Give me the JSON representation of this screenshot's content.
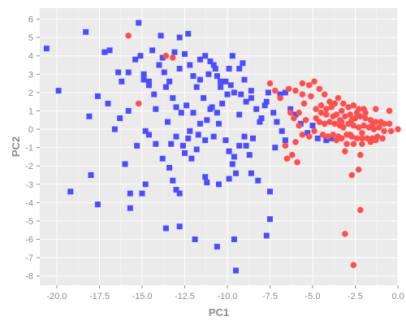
{
  "chart_data": {
    "type": "scatter",
    "xlabel": "PC1",
    "ylabel": "PC2",
    "xlim": [
      -21,
      0
    ],
    "ylim": [
      -8.5,
      6.6
    ],
    "grid": true,
    "background": "#ebebeb",
    "gridline_color": "#ffffff",
    "x_ticks": [
      -20.0,
      -17.5,
      -15.0,
      -12.5,
      -10.0,
      -7.5,
      -5.0,
      -2.5,
      0.0
    ],
    "x_tick_labels": [
      "-20.0",
      "-17.5",
      "-15.0",
      "-12.5",
      "-10.0",
      "-7.5",
      "-5.0",
      "-2.5",
      "0.0"
    ],
    "y_ticks": [
      6,
      5,
      4,
      3,
      2,
      1,
      0,
      -1,
      -2,
      -3,
      -4,
      -5,
      -6,
      -7,
      -8
    ],
    "y_tick_labels": [
      "6",
      "5",
      "4",
      "3",
      "2",
      "1",
      "0",
      "-1",
      "-2",
      "-3",
      "-4",
      "-5",
      "-6",
      "-7",
      "-8"
    ],
    "series": [
      {
        "color": "#4d4dff",
        "marker": "square",
        "points": [
          [
            -20.6,
            4.4
          ],
          [
            -19.9,
            2.1
          ],
          [
            -18.3,
            5.3
          ],
          [
            -17.6,
            1.8
          ],
          [
            -18.1,
            0.7
          ],
          [
            -18.0,
            -2.5
          ],
          [
            -19.2,
            -3.4
          ],
          [
            -17.6,
            -4.1
          ],
          [
            -17.2,
            4.2
          ],
          [
            -16.9,
            4.3
          ],
          [
            -16.4,
            3.1
          ],
          [
            -16.2,
            2.6
          ],
          [
            -17.0,
            1.4
          ],
          [
            -16.6,
            0.0
          ],
          [
            -16.3,
            0.6
          ],
          [
            -16.0,
            -1.9
          ],
          [
            -15.7,
            -4.3
          ],
          [
            -15.2,
            5.8
          ],
          [
            -15.4,
            3.8
          ],
          [
            -15.1,
            4.0
          ],
          [
            -14.9,
            2.7
          ],
          [
            -14.6,
            2.4
          ],
          [
            -14.2,
            1.1
          ],
          [
            -14.8,
            -0.1
          ],
          [
            -14.2,
            -0.8
          ],
          [
            -14.4,
            4.3
          ],
          [
            -14.0,
            3.5
          ],
          [
            -13.8,
            3.9
          ],
          [
            -13.7,
            3.1
          ],
          [
            -13.4,
            2.6
          ],
          [
            -13.2,
            1.7
          ],
          [
            -13.0,
            1.2
          ],
          [
            -12.7,
            0.9
          ],
          [
            -13.8,
            -1.6
          ],
          [
            -13.4,
            -2.1
          ],
          [
            -13.2,
            -2.8
          ],
          [
            -13.0,
            -3.3
          ],
          [
            -12.8,
            -3.5
          ],
          [
            -12.4,
            1.3
          ],
          [
            -12.2,
            -0.1
          ],
          [
            -11.8,
            -1.1
          ],
          [
            -13.9,
            5.1
          ],
          [
            -13.6,
            2.3
          ],
          [
            -13.1,
            4.2
          ],
          [
            -12.8,
            3.3
          ],
          [
            -12.5,
            4.1
          ],
          [
            -12.2,
            3.5
          ],
          [
            -12.0,
            2.9
          ],
          [
            -11.8,
            2.3
          ],
          [
            -11.6,
            2.7
          ],
          [
            -11.3,
            4.0
          ],
          [
            -11.0,
            3.7
          ],
          [
            -10.8,
            3.5
          ],
          [
            -10.6,
            2.9
          ],
          [
            -10.4,
            2.3
          ],
          [
            -10.9,
            1.2
          ],
          [
            -11.2,
            0.5
          ],
          [
            -10.8,
            -0.4
          ],
          [
            -10.5,
            0.3
          ],
          [
            -10.1,
            -0.6
          ],
          [
            -9.9,
            -1.2
          ],
          [
            -9.6,
            -1.5
          ],
          [
            -9.3,
            -0.9
          ],
          [
            -9.0,
            -0.4
          ],
          [
            -8.7,
            -1.4
          ],
          [
            -9.7,
            -1.9
          ],
          [
            -9.9,
            -2.7
          ],
          [
            -9.5,
            -2.4
          ],
          [
            -8.6,
            -2.4
          ],
          [
            -8.2,
            -2.8
          ],
          [
            -9.7,
            4.0
          ],
          [
            -9.3,
            3.3
          ],
          [
            -9.8,
            2.4
          ],
          [
            -9.2,
            1.9
          ],
          [
            -8.9,
            1.5
          ],
          [
            -9.0,
            2.7
          ],
          [
            -8.6,
            1.7
          ],
          [
            -8.3,
            1.1
          ],
          [
            -8.0,
            0.6
          ],
          [
            -7.7,
            1.5
          ],
          [
            -7.3,
            0.9
          ],
          [
            -7.1,
            0.4
          ],
          [
            -6.8,
            -0.1
          ],
          [
            -6.6,
            -0.6
          ],
          [
            -6.3,
            1.1
          ],
          [
            -6.0,
            0.8
          ],
          [
            -5.7,
            0.3
          ],
          [
            -5.3,
            -0.2
          ],
          [
            -5.0,
            0.2
          ],
          [
            -4.7,
            -0.5
          ],
          [
            -4.2,
            -0.6
          ],
          [
            -3.9,
            -0.5
          ],
          [
            -7.2,
            -1.0
          ],
          [
            -7.5,
            -3.4
          ],
          [
            -7.5,
            -4.9
          ],
          [
            -7.7,
            -5.8
          ],
          [
            -9.6,
            -6.0
          ],
          [
            -9.5,
            -7.7
          ],
          [
            -10.6,
            -6.4
          ],
          [
            -12.8,
            -5.3
          ],
          [
            -14.6,
            -0.3
          ],
          [
            -14.3,
            1.9
          ],
          [
            -15.8,
            1.0
          ],
          [
            -15.3,
            -0.9
          ],
          [
            -12.0,
            0.9
          ],
          [
            -11.7,
            -0.3
          ],
          [
            -11.4,
            1.7
          ],
          [
            -11.0,
            1.1
          ],
          [
            -10.6,
            0.9
          ],
          [
            -10.3,
            1.4
          ],
          [
            -10.0,
            1.9
          ],
          [
            -9.6,
            2.0
          ],
          [
            -9.3,
            0.8
          ],
          [
            -8.9,
            -0.9
          ],
          [
            -8.5,
            -0.5
          ],
          [
            -8.1,
            0.4
          ],
          [
            -7.8,
            1.3
          ],
          [
            -7.6,
            2.0
          ],
          [
            -6.9,
            1.9
          ],
          [
            -6.6,
            2.0
          ],
          [
            -12.8,
            5.0
          ],
          [
            -12.3,
            5.2
          ],
          [
            -11.6,
            3.8
          ],
          [
            -11.1,
            3.0
          ],
          [
            -10.7,
            3.3
          ],
          [
            -10.4,
            2.6
          ],
          [
            -10.1,
            2.6
          ],
          [
            -9.9,
            3.3
          ],
          [
            -9.1,
            3.6
          ],
          [
            -8.6,
            2.1
          ],
          [
            -13.3,
            -0.8
          ],
          [
            -12.3,
            -0.5
          ],
          [
            -11.3,
            -2.6
          ],
          [
            -11.2,
            -2.9
          ],
          [
            -10.5,
            -3.0
          ],
          [
            -11.9,
            -6.0
          ],
          [
            -13.6,
            -5.4
          ],
          [
            -15.0,
            -3.5
          ],
          [
            -14.8,
            -3.0
          ],
          [
            -15.7,
            -3.5
          ],
          [
            -15.8,
            3.1
          ],
          [
            -14.9,
            3.0
          ],
          [
            -14.6,
            2.6
          ],
          [
            -13.5,
            0.4
          ],
          [
            -13.0,
            -0.4
          ],
          [
            -12.6,
            -0.9
          ],
          [
            -12.5,
            -1.3
          ],
          [
            -12.1,
            -1.6
          ],
          [
            -11.3,
            -0.6
          ],
          [
            -11.6,
            0.3
          ]
        ]
      },
      {
        "color": "#ff5050",
        "marker": "circle",
        "points": [
          [
            -15.8,
            5.1
          ],
          [
            -13.6,
            4.0
          ],
          [
            -13.2,
            3.9
          ],
          [
            -15.2,
            1.4
          ],
          [
            -7.5,
            2.5
          ],
          [
            -7.2,
            2.1
          ],
          [
            -6.9,
            1.7
          ],
          [
            -6.4,
            2.2
          ],
          [
            -6.0,
            2.1
          ],
          [
            -5.6,
            2.5
          ],
          [
            -5.2,
            2.4
          ],
          [
            -4.9,
            2.6
          ],
          [
            -4.6,
            2.2
          ],
          [
            -4.3,
            1.9
          ],
          [
            -4.0,
            1.5
          ],
          [
            -3.7,
            1.4
          ],
          [
            -3.5,
            1.7
          ],
          [
            -3.2,
            1.4
          ],
          [
            -2.9,
            1.2
          ],
          [
            -2.6,
            1.3
          ],
          [
            -2.3,
            1.1
          ],
          [
            -2.0,
            1.1
          ],
          [
            -1.3,
            1.1
          ],
          [
            -0.5,
            1.0
          ],
          [
            -5.1,
            1.8
          ],
          [
            -5.5,
            1.4
          ],
          [
            -5.8,
            0.9
          ],
          [
            -4.8,
            1.1
          ],
          [
            -4.5,
            0.9
          ],
          [
            -4.2,
            0.8
          ],
          [
            -3.8,
            0.7
          ],
          [
            -3.6,
            0.8
          ],
          [
            -3.4,
            0.5
          ],
          [
            -3.1,
            0.7
          ],
          [
            -2.8,
            0.8
          ],
          [
            -2.5,
            0.6
          ],
          [
            -2.2,
            0.7
          ],
          [
            -1.9,
            0.6
          ],
          [
            -1.6,
            0.5
          ],
          [
            -1.3,
            0.4
          ],
          [
            -1.0,
            0.4
          ],
          [
            -0.8,
            0.3
          ],
          [
            -0.5,
            0.3
          ],
          [
            -4.6,
            0.4
          ],
          [
            -4.3,
            0.3
          ],
          [
            -4.0,
            0.4
          ],
          [
            -3.7,
            0.3
          ],
          [
            -3.4,
            0.2
          ],
          [
            -3.2,
            0.1
          ],
          [
            -2.9,
            0.3
          ],
          [
            -2.6,
            0.2
          ],
          [
            -2.3,
            0.1
          ],
          [
            -2.0,
            0.2
          ],
          [
            -1.7,
            0.1
          ],
          [
            -1.4,
            0.0
          ],
          [
            -1.1,
            0.1
          ],
          [
            -0.8,
            -0.1
          ],
          [
            -0.4,
            -0.1
          ],
          [
            0.0,
            0.0
          ],
          [
            -4.4,
            -0.3
          ],
          [
            -4.1,
            -0.4
          ],
          [
            -3.8,
            -0.3
          ],
          [
            -3.5,
            -0.4
          ],
          [
            -3.3,
            -0.5
          ],
          [
            -3.0,
            -0.3
          ],
          [
            -2.7,
            -0.4
          ],
          [
            -2.4,
            -0.5
          ],
          [
            -2.1,
            -0.5
          ],
          [
            -1.8,
            -0.5
          ],
          [
            -1.5,
            -0.5
          ],
          [
            -1.2,
            -0.4
          ],
          [
            -0.9,
            -0.5
          ],
          [
            -3.6,
            -0.6
          ],
          [
            -3.0,
            -0.8
          ],
          [
            -2.6,
            -0.8
          ],
          [
            -2.1,
            -0.8
          ],
          [
            -1.6,
            -0.7
          ],
          [
            -1.3,
            -0.6
          ],
          [
            -3.1,
            -1.2
          ],
          [
            -2.2,
            -1.4
          ],
          [
            -6.3,
            0.9
          ],
          [
            -6.1,
            0.6
          ],
          [
            -5.8,
            0.2
          ],
          [
            -5.6,
            -0.3
          ],
          [
            -5.4,
            0.5
          ],
          [
            -6.6,
            -0.9
          ],
          [
            -6.0,
            -0.7
          ],
          [
            -5.2,
            -0.4
          ],
          [
            -4.9,
            -0.1
          ],
          [
            -5.6,
            1.9
          ],
          [
            -6.5,
            -1.6
          ],
          [
            -5.9,
            -1.8
          ],
          [
            -6.2,
            -1.4
          ],
          [
            -2.8,
            -0.3
          ],
          [
            -2.1,
            -0.2
          ],
          [
            -3.3,
            1.0
          ],
          [
            -3.9,
            1.2
          ],
          [
            -4.5,
            1.3
          ],
          [
            -2.4,
            0.9
          ],
          [
            -1.9,
            0.9
          ],
          [
            -2.3,
            -2.2
          ],
          [
            -2.7,
            -2.5
          ],
          [
            -2.2,
            -4.4
          ],
          [
            -3.1,
            -5.7
          ],
          [
            -2.6,
            -7.4
          ],
          [
            -4.8,
            0.6
          ],
          [
            -4.2,
            1.1
          ],
          [
            -3.3,
            0.4
          ],
          [
            -2.7,
            0.5
          ],
          [
            -1.5,
            0.2
          ]
        ]
      }
    ]
  }
}
